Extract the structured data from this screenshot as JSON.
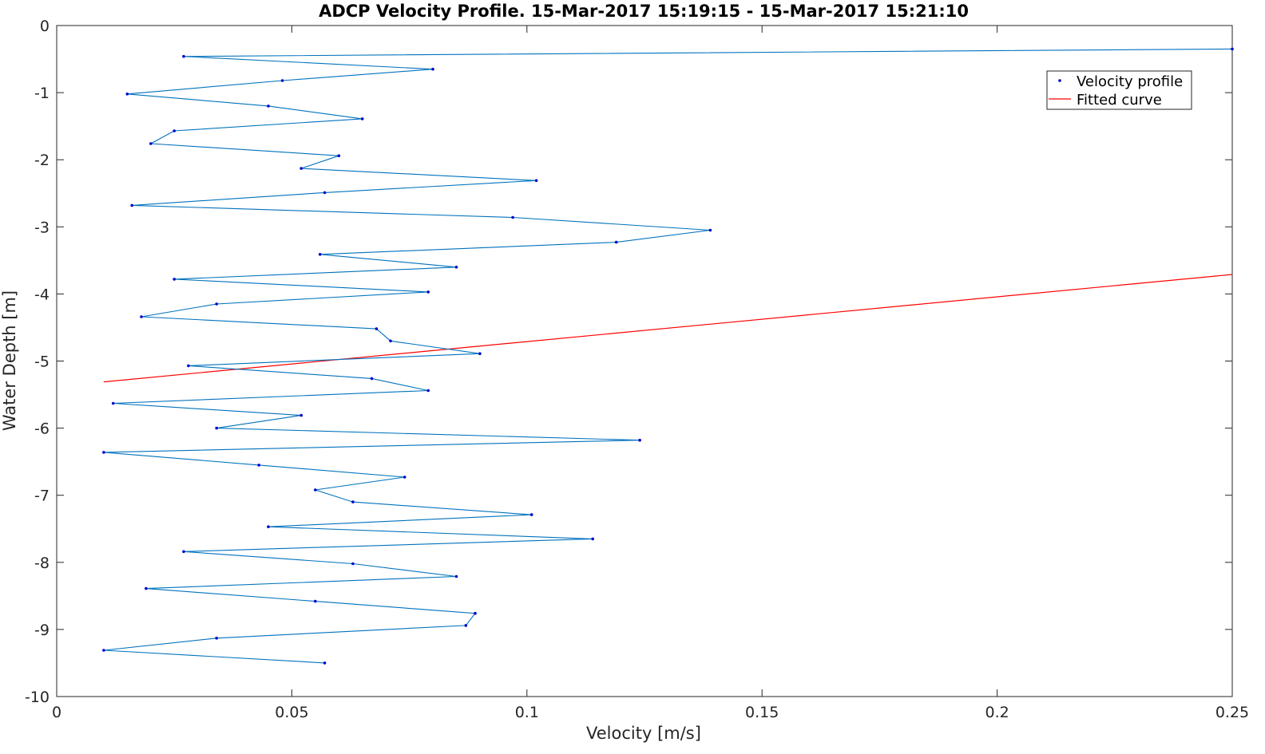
{
  "chart_data": {
    "type": "line",
    "title": "ADCP Velocity Profile. 15-Mar-2017 15:19:15 - 15-Mar-2017 15:21:10",
    "xlabel": "Velocity [m/s]",
    "ylabel": "Water Depth [m]",
    "xlim": [
      0,
      0.25
    ],
    "ylim": [
      -10,
      0
    ],
    "xticks": [
      0,
      0.05,
      0.1,
      0.15,
      0.2,
      0.25
    ],
    "xtick_labels": [
      "0",
      "0.05",
      "0.1",
      "0.15",
      "0.2",
      "0.25"
    ],
    "yticks": [
      0,
      -1,
      -2,
      -3,
      -4,
      -5,
      -6,
      -7,
      -8,
      -9,
      -10
    ],
    "ytick_labels": [
      "0",
      "-1",
      "-2",
      "-3",
      "-4",
      "-5",
      "-6",
      "-7",
      "-8",
      "-9",
      "-10"
    ],
    "grid": false,
    "legend_position": "top-right",
    "series": [
      {
        "name": "Velocity profile",
        "color": "#0000cd",
        "line_color": "#0072bd",
        "marker": "point",
        "points": [
          [
            0.25,
            -0.35
          ],
          [
            0.027,
            -0.46
          ],
          [
            0.08,
            -0.65
          ],
          [
            0.048,
            -0.82
          ],
          [
            0.015,
            -1.02
          ],
          [
            0.045,
            -1.2
          ],
          [
            0.065,
            -1.39
          ],
          [
            0.025,
            -1.57
          ],
          [
            0.02,
            -1.76
          ],
          [
            0.06,
            -1.94
          ],
          [
            0.052,
            -2.13
          ],
          [
            0.102,
            -2.31
          ],
          [
            0.057,
            -2.49
          ],
          [
            0.016,
            -2.68
          ],
          [
            0.097,
            -2.86
          ],
          [
            0.139,
            -3.05
          ],
          [
            0.119,
            -3.23
          ],
          [
            0.056,
            -3.41
          ],
          [
            0.085,
            -3.6
          ],
          [
            0.025,
            -3.78
          ],
          [
            0.079,
            -3.97
          ],
          [
            0.034,
            -4.15
          ],
          [
            0.018,
            -4.34
          ],
          [
            0.068,
            -4.52
          ],
          [
            0.071,
            -4.7
          ],
          [
            0.09,
            -4.89
          ],
          [
            0.028,
            -5.07
          ],
          [
            0.067,
            -5.26
          ],
          [
            0.079,
            -5.44
          ],
          [
            0.012,
            -5.63
          ],
          [
            0.052,
            -5.81
          ],
          [
            0.034,
            -6.0
          ],
          [
            0.124,
            -6.18
          ],
          [
            0.01,
            -6.36
          ],
          [
            0.043,
            -6.55
          ],
          [
            0.074,
            -6.73
          ],
          [
            0.055,
            -6.92
          ],
          [
            0.063,
            -7.1
          ],
          [
            0.101,
            -7.29
          ],
          [
            0.045,
            -7.47
          ],
          [
            0.114,
            -7.65
          ],
          [
            0.027,
            -7.84
          ],
          [
            0.063,
            -8.02
          ],
          [
            0.085,
            -8.21
          ],
          [
            0.019,
            -8.39
          ],
          [
            0.055,
            -8.58
          ],
          [
            0.089,
            -8.76
          ],
          [
            0.087,
            -8.94
          ],
          [
            0.034,
            -9.13
          ],
          [
            0.01,
            -9.31
          ],
          [
            0.057,
            -9.5
          ]
        ]
      },
      {
        "name": "Fitted curve",
        "color": "#ff0000",
        "x": [
          0.01,
          0.25
        ],
        "y": [
          -5.31,
          -3.71
        ]
      }
    ]
  }
}
